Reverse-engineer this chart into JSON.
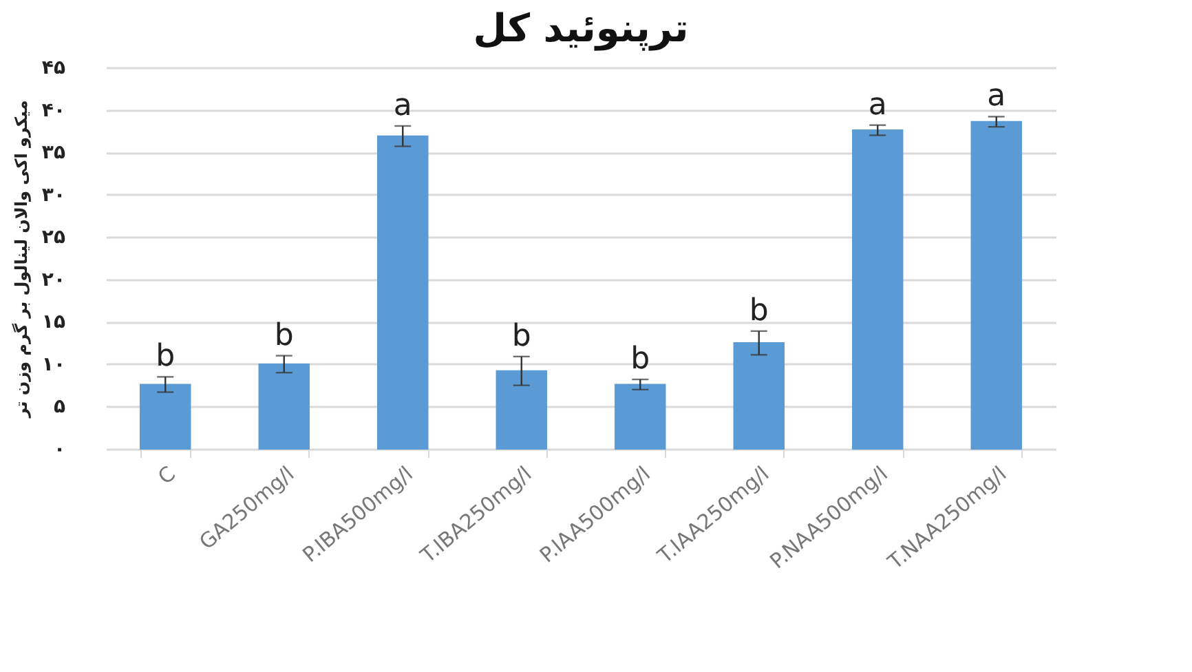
{
  "chart_data": {
    "type": "bar",
    "title": "ترپنوئید کل",
    "ylabel": "میکرو اکی والان لینالول بر گرم وزن تر",
    "categories": [
      "C",
      "GA250mg/l",
      "P.IBA500mg/l",
      "T.IBA250mg/l",
      "P.IAA500mg/l",
      "T.IAA250mg/l",
      "P.NAA500mg/l",
      "T.NAA250mg/l"
    ],
    "values": [
      7.6,
      10.0,
      36.9,
      9.2,
      7.6,
      12.5,
      37.6,
      38.6
    ],
    "errors": [
      0.9,
      1.0,
      1.2,
      1.7,
      0.6,
      1.4,
      0.6,
      0.6
    ],
    "color": "#5b9bd5",
    "ylim": [
      0,
      45
    ],
    "yticks": [
      {
        "value": 0,
        "label": "۰"
      },
      {
        "value": 5,
        "label": "۵"
      },
      {
        "value": 10,
        "label": "۱۰"
      },
      {
        "value": 15,
        "label": "۱۵"
      },
      {
        "value": 20,
        "label": "۲۰"
      },
      {
        "value": 25,
        "label": "۲۵"
      },
      {
        "value": 30,
        "label": "۳۰"
      },
      {
        "value": 35,
        "label": "۳۵"
      },
      {
        "value": 40,
        "label": "۴۰"
      },
      {
        "value": 45,
        "label": "۴۵"
      }
    ],
    "grid": "y",
    "annotations": [
      {
        "text": "b",
        "x": "C",
        "y": 7.6
      },
      {
        "text": "b",
        "x": "GA250mg/l",
        "y": 10.0
      },
      {
        "text": "a",
        "x": "P.IBA500mg/l",
        "y": 36.9
      },
      {
        "text": "b",
        "x": "T.IBA250mg/l",
        "y": 9.2
      },
      {
        "text": "b",
        "x": "P.IAA500mg/l",
        "y": 7.6
      },
      {
        "text": "b",
        "x": "T.IAA250mg/l",
        "y": 12.5
      },
      {
        "text": "a",
        "x": "P.NAA500mg/l",
        "y": 37.6
      },
      {
        "text": "a",
        "x": "T.NAA250mg/l",
        "y": 38.6
      }
    ]
  }
}
